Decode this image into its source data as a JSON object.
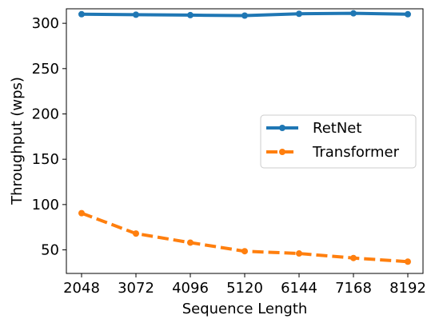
{
  "chart_data": {
    "type": "line",
    "xlabel": "Sequence Length",
    "ylabel": "Throughput (wps)",
    "x": [
      2048,
      3072,
      4096,
      5120,
      6144,
      7168,
      8192
    ],
    "x_tick_labels": [
      "2048",
      "3072",
      "4096",
      "5120",
      "6144",
      "7168",
      "8192"
    ],
    "y_ticks": [
      50,
      100,
      150,
      200,
      250,
      300
    ],
    "y_tick_labels": [
      "50",
      "100",
      "150",
      "200",
      "250",
      "300"
    ],
    "ylim": [
      24,
      316
    ],
    "grid": false,
    "legend_placement": "center-right",
    "series": [
      {
        "name": "RetNet",
        "color": "#1f77b4",
        "line_style": "solid",
        "values": [
          310,
          309.5,
          309,
          308.5,
          310.5,
          311,
          310
        ]
      },
      {
        "name": "Transformer",
        "color": "#ff7f0e",
        "line_style": "dashed",
        "values": [
          90.5,
          68,
          58,
          48.5,
          46,
          41,
          37
        ]
      }
    ]
  }
}
